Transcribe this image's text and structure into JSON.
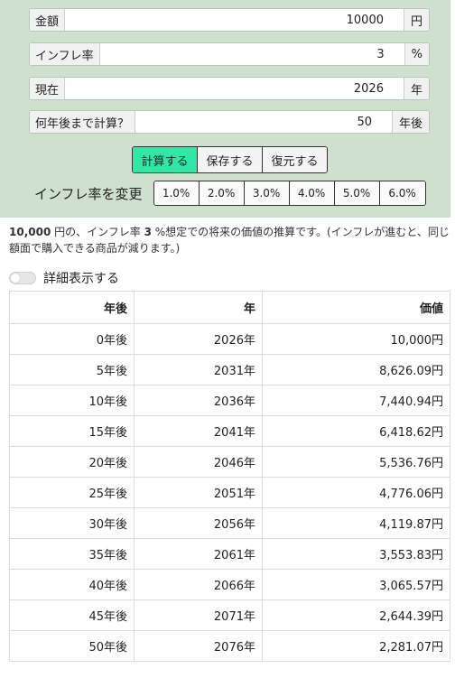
{
  "form": {
    "amount": {
      "label": "金額",
      "value": "10000",
      "unit": "円"
    },
    "inflation": {
      "label": "インフレ率",
      "value": "3",
      "unit": "%"
    },
    "current": {
      "label": "現在",
      "value": "2026",
      "unit": "年"
    },
    "years": {
      "label": "何年後まで計算？",
      "value": "50",
      "unit": "年後"
    }
  },
  "actions": {
    "calculate": "計算する",
    "save": "保存する",
    "restore": "復元する"
  },
  "rate_change": {
    "title": "インフレ率を変更",
    "options": [
      "1.0%",
      "2.0%",
      "3.0%",
      "4.0%",
      "5.0%",
      "6.0%"
    ]
  },
  "description": {
    "amount": "10,000",
    "part1": " 円の、インフレ率 ",
    "rate": "3",
    "part2": " %想定での将来の価値の推算です。(インフレが進むと、同じ額面で購入できる商品が減ります。)"
  },
  "detail_toggle": {
    "label": "詳細表示する"
  },
  "table": {
    "headers": [
      "年後",
      "年",
      "価値"
    ],
    "rows": [
      [
        "0年後",
        "2026年",
        "10,000円"
      ],
      [
        "5年後",
        "2031年",
        "8,626.09円"
      ],
      [
        "10年後",
        "2036年",
        "7,440.94円"
      ],
      [
        "15年後",
        "2041年",
        "6,418.62円"
      ],
      [
        "20年後",
        "2046年",
        "5,536.76円"
      ],
      [
        "25年後",
        "2051年",
        "4,776.06円"
      ],
      [
        "30年後",
        "2056年",
        "4,119.87円"
      ],
      [
        "35年後",
        "2061年",
        "3,553.83円"
      ],
      [
        "40年後",
        "2066年",
        "3,065.57円"
      ],
      [
        "45年後",
        "2071年",
        "2,644.39円"
      ],
      [
        "50年後",
        "2076年",
        "2,281.07円"
      ]
    ]
  },
  "colors": {
    "panel_bg": "#cfe0cf",
    "primary_button": "#2ee8a8"
  }
}
